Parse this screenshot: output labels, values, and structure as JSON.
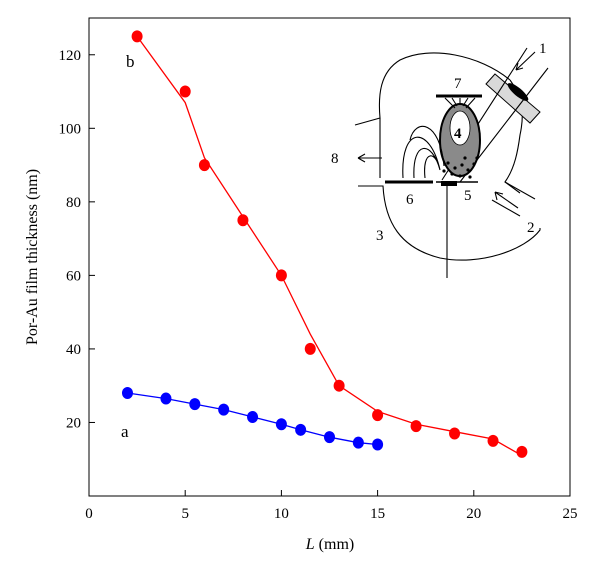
{
  "chart_data": {
    "type": "line",
    "title": "",
    "xlabel_italic": "L",
    "xlabel_rest": " (mm)",
    "ylabel": "Por-Au film thickness (nm)",
    "xlim": [
      0,
      25
    ],
    "ylim": [
      0,
      130
    ],
    "x_ticks": [
      0,
      5,
      10,
      15,
      20,
      25
    ],
    "y_ticks": [
      20,
      40,
      60,
      80,
      100,
      120
    ],
    "grid": false,
    "series": [
      {
        "name": "b",
        "color": "#ff0000",
        "x": [
          2.5,
          5,
          6,
          8,
          10,
          11.5,
          13,
          15,
          17,
          19,
          21,
          22.5
        ],
        "y": [
          125,
          110,
          90,
          75,
          60,
          40,
          30,
          22,
          19,
          17,
          15,
          12
        ],
        "line_x": [
          2.5,
          5,
          6,
          8,
          10,
          11.5,
          13,
          15,
          17,
          19,
          21,
          22.5
        ],
        "line_y": [
          125,
          107,
          92,
          76,
          60,
          44,
          30,
          23,
          19.5,
          17.5,
          15.5,
          11
        ]
      },
      {
        "name": "a",
        "color": "#0000ff",
        "x": [
          2,
          4,
          5.5,
          7,
          8.5,
          10,
          11,
          12.5,
          14,
          15
        ],
        "y": [
          28,
          26.5,
          25,
          23.5,
          21.5,
          19.5,
          18,
          16,
          14.5,
          14
        ]
      }
    ]
  },
  "inset": {
    "labels": [
      "1",
      "2",
      "3",
      "4",
      "5",
      "6",
      "7",
      "8"
    ]
  }
}
